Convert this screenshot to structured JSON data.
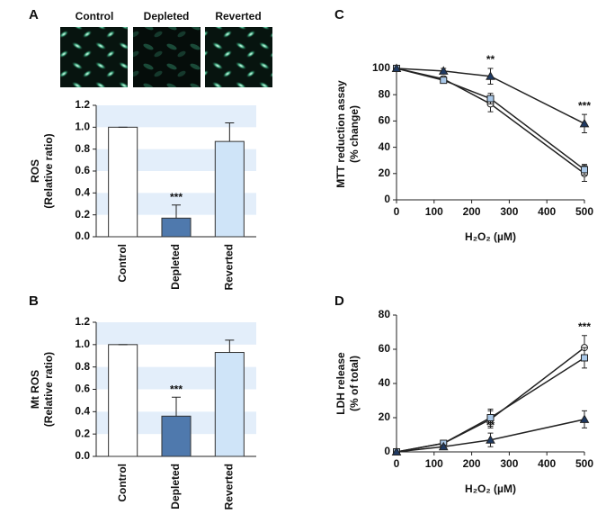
{
  "chart_data": [
    {
      "type": "bar",
      "panel": "A",
      "images": [
        "Control",
        "Depleted",
        "Reverted"
      ],
      "ylabel": [
        "ROS",
        "(Relative ratio)"
      ],
      "categories": [
        "Control",
        "Depleted",
        "Reverted"
      ],
      "values": [
        1.0,
        0.17,
        0.87
      ],
      "errors": [
        0,
        0.12,
        0.17
      ],
      "colors": [
        "#ffffff",
        "#4f79ad",
        "#cfe4f8"
      ],
      "ylim": [
        0,
        1.2
      ],
      "yticks": [
        {
          "value": 0,
          "label": "0.0"
        },
        0.2,
        0.4,
        0.6,
        0.8,
        {
          "value": 1,
          "label": "1.0"
        },
        1.2
      ],
      "grid": true,
      "annotations": [
        {
          "text": "***",
          "category": 1
        }
      ]
    },
    {
      "type": "bar",
      "panel": "B",
      "ylabel": [
        "Mt ROS",
        "(Relative ratio)"
      ],
      "categories": [
        "Control",
        "Depleted",
        "Reverted"
      ],
      "values": [
        1.0,
        0.36,
        0.93
      ],
      "errors": [
        0,
        0.17,
        0.11
      ],
      "colors": [
        "#ffffff",
        "#4f79ad",
        "#cfe4f8"
      ],
      "ylim": [
        0,
        1.2
      ],
      "yticks": [
        {
          "value": 0,
          "label": "0.0"
        },
        0.2,
        0.4,
        0.6,
        0.8,
        {
          "value": 1,
          "label": "1.0"
        },
        1.2
      ],
      "grid": true,
      "annotations": [
        {
          "text": "***",
          "category": 1
        }
      ]
    },
    {
      "type": "line",
      "panel": "C",
      "ylabel": [
        "MTT reduction assay",
        "(% change)"
      ],
      "xlabel": "H₂O₂ (µM)",
      "x": [
        0,
        125,
        250,
        500
      ],
      "series": [
        {
          "marker": "circle",
          "color": "#ffffff",
          "values": [
            100,
            92,
            73,
            20
          ],
          "errors": [
            0,
            2,
            6,
            6
          ]
        },
        {
          "marker": "square",
          "color": "#a9c8e8",
          "values": [
            100,
            91,
            77,
            23
          ],
          "errors": [
            0,
            2,
            4,
            4
          ]
        },
        {
          "marker": "triangle",
          "color": "#1f3a63",
          "values": [
            100,
            98,
            94,
            58
          ],
          "errors": [
            0,
            2,
            6,
            7
          ]
        }
      ],
      "xlim": [
        0,
        500
      ],
      "xticks": [
        0,
        100,
        200,
        300,
        400,
        500
      ],
      "ylim": [
        0,
        100
      ],
      "yticks": [
        0,
        20,
        40,
        60,
        80,
        100
      ],
      "annotations": [
        {
          "text": "**",
          "x": 250,
          "position": "above"
        },
        {
          "text": "***",
          "x": 500,
          "position": "above"
        }
      ]
    },
    {
      "type": "line",
      "panel": "D",
      "ylabel": [
        "LDH release",
        "(% of total)"
      ],
      "xlabel": "H₂O₂ (µM)",
      "x": [
        0,
        125,
        250,
        500
      ],
      "series": [
        {
          "marker": "circle",
          "color": "#ffffff",
          "values": [
            0,
            5,
            19,
            61
          ],
          "errors": [
            0,
            1,
            5,
            7
          ]
        },
        {
          "marker": "square",
          "color": "#a9c8e8",
          "values": [
            0,
            5,
            20,
            55
          ],
          "errors": [
            0,
            1,
            5,
            6
          ]
        },
        {
          "marker": "triangle",
          "color": "#1f3a63",
          "values": [
            0,
            3,
            7,
            19
          ],
          "errors": [
            0,
            1,
            4,
            5
          ]
        }
      ],
      "xlim": [
        0,
        500
      ],
      "xticks": [
        0,
        100,
        200,
        300,
        400,
        500
      ],
      "ylim": [
        0,
        80
      ],
      "yticks": [
        0,
        20,
        40,
        60,
        80
      ],
      "annotations": [
        {
          "text": "**",
          "x": 250,
          "position": "below"
        },
        {
          "text": "***",
          "x": 500,
          "position": "above"
        }
      ]
    }
  ]
}
